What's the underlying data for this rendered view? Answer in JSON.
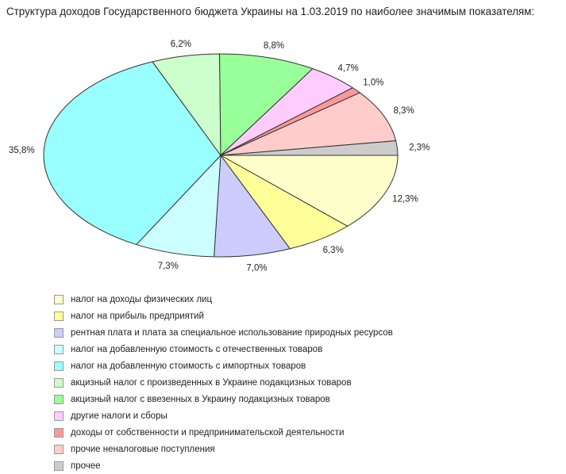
{
  "chart_data": {
    "type": "pie",
    "title": "Структура доходов Государственного бюджета Украины на 1.03.2019 по наиболее значимым показателям:",
    "slices": [
      {
        "label": "налог на доходы физических лиц",
        "value": 12.3,
        "value_label": "12,3%",
        "color": "#ffffcc"
      },
      {
        "label": "налог на прибыль предприятий",
        "value": 6.3,
        "value_label": "6,3%",
        "color": "#ffff99"
      },
      {
        "label": "рентная плата и плата за специальное использование природных ресурсов",
        "value": 7.0,
        "value_label": "7,0%",
        "color": "#ccccff"
      },
      {
        "label": "налог на добавленную стоимость с отечественных товаров",
        "value": 7.3,
        "value_label": "7,3%",
        "color": "#ccffff"
      },
      {
        "label": "налог на добавленную стоимость с импортных товаров",
        "value": 35.8,
        "value_label": "35,8%",
        "color": "#99ffff"
      },
      {
        "label": "акцизный налог с произведенных в Украине подакцизных товаров",
        "value": 6.2,
        "value_label": "6,2%",
        "color": "#ccffcc"
      },
      {
        "label": "акцизный налог с ввезенных в Украину подакцизных товаров",
        "value": 8.8,
        "value_label": "8,8%",
        "color": "#99ff99"
      },
      {
        "label": "другие налоги и сборы",
        "value": 4.7,
        "value_label": "4,7%",
        "color": "#ffccff"
      },
      {
        "label": "доходы от собственности и предпринимательской деятельности",
        "value": 1.0,
        "value_label": "1,0%",
        "color": "#ff9999"
      },
      {
        "label": "прочие неналоговые поступления",
        "value": 8.3,
        "value_label": "8,3%",
        "color": "#ffcccc"
      },
      {
        "label": "прочее",
        "value": 2.3,
        "value_label": "2,3%",
        "color": "#cccccc"
      }
    ],
    "start_angle": "3 o'clock",
    "direction": "clockwise",
    "legend_position": "bottom-left"
  }
}
